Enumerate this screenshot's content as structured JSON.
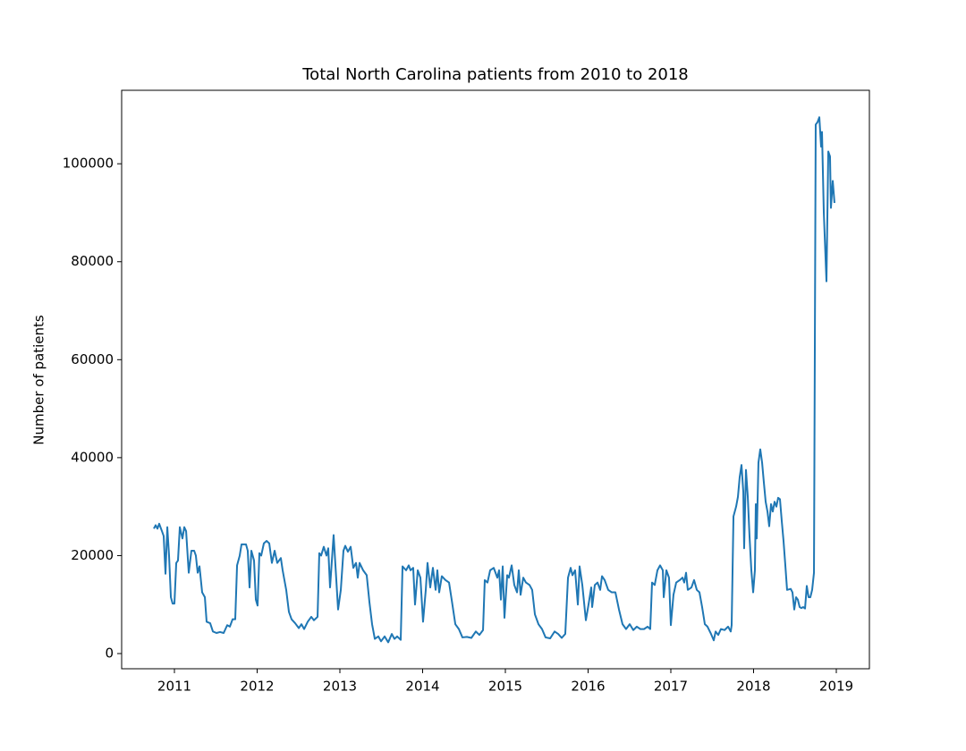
{
  "chart_data": {
    "type": "line",
    "title": "Total North Carolina patients from 2010 to 2018",
    "y_label": "Number of patients",
    "color": "#1f77b4",
    "xlim": [
      2010.362,
      2019.4
    ],
    "xticks": [
      2011,
      2012,
      2013,
      2014,
      2015,
      2016,
      2017,
      2018,
      2019
    ],
    "ylim": [
      -3100,
      115000
    ],
    "yticks": [
      0,
      20000,
      40000,
      60000,
      80000,
      100000
    ],
    "grid": false,
    "x": [
      2010.751,
      2010.773,
      2010.795,
      2010.816,
      2010.849,
      2010.87,
      2010.892,
      2010.914,
      2010.935,
      2010.957,
      2010.978,
      2011.0,
      2011.022,
      2011.043,
      2011.065,
      2011.097,
      2011.119,
      2011.141,
      2011.173,
      2011.205,
      2011.238,
      2011.259,
      2011.281,
      2011.303,
      2011.335,
      2011.368,
      2011.389,
      2011.432,
      2011.465,
      2011.508,
      2011.551,
      2011.595,
      2011.638,
      2011.67,
      2011.703,
      2011.735,
      2011.757,
      2011.789,
      2011.811,
      2011.865,
      2011.886,
      2011.908,
      2011.93,
      2011.962,
      2011.984,
      2012.005,
      2012.027,
      2012.049,
      2012.081,
      2012.114,
      2012.146,
      2012.178,
      2012.211,
      2012.243,
      2012.286,
      2012.308,
      2012.351,
      2012.384,
      2012.416,
      2012.459,
      2012.503,
      2012.535,
      2012.568,
      2012.611,
      2012.654,
      2012.686,
      2012.73,
      2012.751,
      2012.773,
      2012.805,
      2012.838,
      2012.859,
      2012.881,
      2012.924,
      2012.946,
      2012.978,
      2013.011,
      2013.043,
      2013.065,
      2013.097,
      2013.13,
      2013.162,
      2013.195,
      2013.216,
      2013.238,
      2013.281,
      2013.324,
      2013.357,
      2013.389,
      2013.422,
      2013.465,
      2013.497,
      2013.541,
      2013.584,
      2013.627,
      2013.659,
      2013.692,
      2013.735,
      2013.757,
      2013.8,
      2013.832,
      2013.854,
      2013.886,
      2013.908,
      2013.941,
      2013.973,
      2014.005,
      2014.038,
      2014.059,
      2014.092,
      2014.124,
      2014.157,
      2014.178,
      2014.2,
      2014.232,
      2014.276,
      2014.319,
      2014.351,
      2014.395,
      2014.438,
      2014.481,
      2014.535,
      2014.589,
      2014.643,
      2014.686,
      2014.73,
      2014.751,
      2014.784,
      2014.816,
      2014.859,
      2014.903,
      2014.924,
      2014.946,
      2014.968,
      2014.989,
      2015.022,
      2015.043,
      2015.076,
      2015.108,
      2015.141,
      2015.162,
      2015.184,
      2015.216,
      2015.249,
      2015.292,
      2015.324,
      2015.357,
      2015.4,
      2015.443,
      2015.486,
      2015.541,
      2015.595,
      2015.638,
      2015.681,
      2015.724,
      2015.757,
      2015.789,
      2015.811,
      2015.843,
      2015.876,
      2015.897,
      2015.93,
      2015.973,
      2016.005,
      2016.038,
      2016.049,
      2016.081,
      2016.114,
      2016.146,
      2016.168,
      2016.2,
      2016.243,
      2016.286,
      2016.33,
      2016.373,
      2016.416,
      2016.459,
      2016.503,
      2016.546,
      2016.589,
      2016.632,
      2016.676,
      2016.719,
      2016.751,
      2016.773,
      2016.805,
      2016.838,
      2016.87,
      2016.903,
      2016.914,
      2016.946,
      2016.978,
      2017.0,
      2017.032,
      2017.065,
      2017.108,
      2017.141,
      2017.162,
      2017.184,
      2017.205,
      2017.249,
      2017.281,
      2017.314,
      2017.346,
      2017.378,
      2017.411,
      2017.443,
      2017.486,
      2017.519,
      2017.541,
      2017.573,
      2017.605,
      2017.649,
      2017.692,
      2017.724,
      2017.735,
      2017.757,
      2017.789,
      2017.811,
      2017.832,
      2017.854,
      2017.876,
      2017.886,
      2017.908,
      2017.93,
      2017.951,
      2017.973,
      2017.995,
      2018.016,
      2018.027,
      2018.038,
      2018.059,
      2018.081,
      2018.103,
      2018.124,
      2018.146,
      2018.168,
      2018.189,
      2018.211,
      2018.232,
      2018.254,
      2018.276,
      2018.297,
      2018.319,
      2018.341,
      2018.362,
      2018.384,
      2018.405,
      2018.449,
      2018.47,
      2018.492,
      2018.514,
      2018.535,
      2018.557,
      2018.578,
      2018.6,
      2018.622,
      2018.643,
      2018.665,
      2018.686,
      2018.708,
      2018.73,
      2018.751,
      2018.773,
      2018.795,
      2018.816,
      2018.827,
      2018.849,
      2018.881,
      2018.903,
      2018.924,
      2018.935,
      2018.957,
      2018.978
    ],
    "values": [
      25500,
      26200,
      25500,
      26500,
      25000,
      24000,
      16300,
      25800,
      20000,
      11500,
      10200,
      10200,
      18500,
      19000,
      25800,
      23500,
      25800,
      25000,
      16500,
      21000,
      21000,
      20000,
      16500,
      17800,
      12500,
      11500,
      6500,
      6200,
      4500,
      4200,
      4400,
      4200,
      5800,
      5500,
      7000,
      7000,
      18000,
      20000,
      22300,
      22300,
      21000,
      13500,
      21000,
      19000,
      11000,
      9800,
      20500,
      20000,
      22500,
      23000,
      22500,
      18500,
      21000,
      18500,
      19500,
      17000,
      13000,
      8500,
      7000,
      6200,
      5200,
      6000,
      5000,
      6500,
      7500,
      6800,
      7500,
      20500,
      20000,
      21800,
      20000,
      21500,
      13500,
      24200,
      18000,
      9000,
      13000,
      21000,
      22000,
      20800,
      21800,
      17500,
      18500,
      15500,
      18500,
      17000,
      16000,
      10500,
      6000,
      3000,
      3500,
      2500,
      3500,
      2300,
      4000,
      3000,
      3500,
      2800,
      17800,
      17000,
      18000,
      17000,
      17500,
      10000,
      17000,
      15500,
      6500,
      13000,
      18500,
      13500,
      17500,
      13000,
      17000,
      12500,
      15800,
      15000,
      14500,
      11000,
      6000,
      5000,
      3300,
      3400,
      3200,
      4500,
      3800,
      4800,
      15000,
      14500,
      17000,
      17500,
      15500,
      17000,
      11000,
      17800,
      7300,
      16000,
      15500,
      18000,
      14000,
      12500,
      17000,
      12000,
      15500,
      14500,
      14000,
      13000,
      8000,
      6000,
      5000,
      3300,
      3100,
      4500,
      4000,
      3200,
      4000,
      15500,
      17500,
      16000,
      17000,
      10000,
      17800,
      14000,
      6800,
      10000,
      13500,
      9500,
      14000,
      14500,
      13000,
      15800,
      15000,
      13000,
      12500,
      12500,
      9000,
      6000,
      5000,
      6000,
      4800,
      5500,
      5000,
      5000,
      5500,
      5000,
      14500,
      14000,
      17000,
      18000,
      17000,
      11500,
      17000,
      15500,
      5800,
      12000,
      14500,
      15000,
      15500,
      14500,
      16500,
      13000,
      13500,
      15000,
      13000,
      12500,
      9500,
      6000,
      5500,
      4000,
      2700,
      4500,
      3800,
      5000,
      4800,
      5500,
      4500,
      5800,
      28000,
      30000,
      32000,
      36000,
      38500,
      33000,
      21500,
      37500,
      32000,
      24000,
      17000,
      12500,
      17000,
      30500,
      23500,
      39000,
      41700,
      39000,
      35000,
      31000,
      29000,
      26000,
      30500,
      29000,
      31000,
      30000,
      31800,
      31500,
      27000,
      23000,
      18000,
      13000,
      13200,
      12500,
      9000,
      11500,
      11000,
      9500,
      9300,
      9500,
      9200,
      13800,
      11500,
      11500,
      13000,
      16500,
      108000,
      108500,
      109500,
      103500,
      106500,
      90000,
      76000,
      102500,
      101500,
      91000,
      96500,
      92000
    ]
  }
}
